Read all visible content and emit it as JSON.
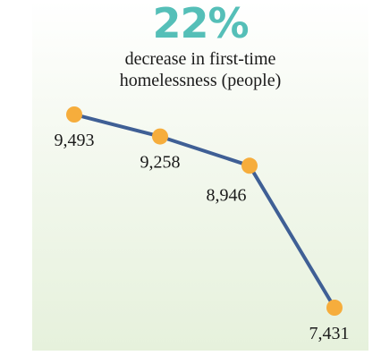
{
  "headline": "22%",
  "subtitle_line1": "decrease in first-time",
  "subtitle_line2": "homelessness (people)",
  "colors": {
    "headline": "#55bfb8",
    "line": "#3f5f95",
    "marker": "#f6ad3c"
  },
  "chart_data": {
    "type": "line",
    "title": "22%",
    "subtitle": "decrease in first-time homelessness (people)",
    "x": [
      1,
      2,
      3,
      4
    ],
    "values": [
      9493,
      9258,
      8946,
      7431
    ],
    "data_labels": [
      "9,493",
      "9,258",
      "8,946",
      "7,431"
    ],
    "xlabel": "",
    "ylabel": "",
    "grid": false,
    "legend": "none"
  }
}
